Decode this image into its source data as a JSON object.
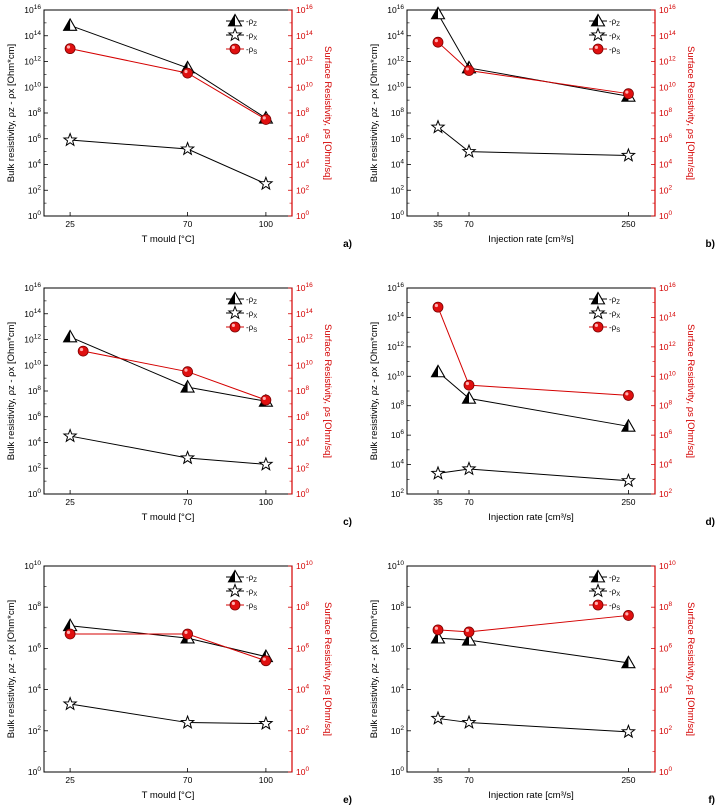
{
  "colors": {
    "bulk": "#000000",
    "surface": "#d40000",
    "marker_red": "#e01010"
  },
  "legend": {
    "rho_z": "-ρ",
    "rho_z_sub": "Z",
    "rho_x": "-ρ",
    "rho_x_sub": "X",
    "rho_s": "-ρ",
    "rho_s_sub": "S"
  },
  "chart_data": [
    {
      "panel": "a)",
      "type": "line",
      "xlabel": "T mould [°C]",
      "x": [
        25,
        70,
        100
      ],
      "xticks": [
        "25",
        "70",
        "100"
      ],
      "xscale": "mould",
      "ylabel": "Bulk resistivity, ρz - ρx [Ohm*cm]",
      "y2label": "Surface Resistivity, ρs [Ohm/sq]",
      "ylim_log": [
        0,
        16
      ],
      "yticks_exp": [
        0,
        2,
        4,
        6,
        8,
        10,
        12,
        14,
        16
      ],
      "series": [
        {
          "name": "ρz",
          "marker": "triangle",
          "values_log": [
            14.8,
            11.5,
            7.6
          ]
        },
        {
          "name": "ρx",
          "marker": "star",
          "values_log": [
            5.9,
            5.2,
            2.5
          ]
        },
        {
          "name": "ρs",
          "marker": "circle",
          "axis": "right",
          "values_log": [
            13.0,
            11.1,
            7.5
          ]
        }
      ]
    },
    {
      "panel": "b)",
      "type": "line",
      "xlabel": "Injection rate [cm³/s]",
      "x": [
        35,
        70,
        250
      ],
      "xticks": [
        "35",
        "70",
        "250"
      ],
      "xscale": "rate",
      "ylabel": "Bulk resistivity, ρz - ρx [Ohm*cm]",
      "y2label": "Surface Resistivity, ρs [Ohm/sq]",
      "ylim_log": [
        0,
        16
      ],
      "yticks_exp": [
        0,
        2,
        4,
        6,
        8,
        10,
        12,
        14,
        16
      ],
      "series": [
        {
          "name": "ρz",
          "marker": "triangle",
          "values_log": [
            15.7,
            11.5,
            9.3
          ]
        },
        {
          "name": "ρx",
          "marker": "star",
          "values_log": [
            6.9,
            5.0,
            4.7
          ]
        },
        {
          "name": "ρs",
          "marker": "circle",
          "axis": "right",
          "values_log": [
            13.5,
            11.3,
            9.5
          ]
        }
      ]
    },
    {
      "panel": "c)",
      "type": "line",
      "xlabel": "T mould [°C]",
      "x": [
        25,
        70,
        100
      ],
      "xticks": [
        "25",
        "70",
        "100"
      ],
      "xscale": "mould",
      "ylabel": "Bulk resistivity, ρz - ρx [Ohm*cm]",
      "y2label": "Surface Resistivity, ρs [Ohm/sq]",
      "ylim_log": [
        0,
        16
      ],
      "yticks_exp": [
        0,
        2,
        4,
        6,
        8,
        10,
        12,
        14,
        16
      ],
      "series": [
        {
          "name": "ρz",
          "marker": "triangle",
          "values_log": [
            12.2,
            8.3,
            7.2
          ]
        },
        {
          "name": "ρx",
          "marker": "star",
          "values_log": [
            4.5,
            2.8,
            2.3
          ]
        },
        {
          "name": "ρs",
          "marker": "circle",
          "axis": "right",
          "values_log": [
            11.1,
            9.5,
            7.3
          ],
          "x_override": [
            30,
            70,
            100
          ]
        }
      ]
    },
    {
      "panel": "d)",
      "type": "line",
      "xlabel": "Injection rate [cm³/s]",
      "x": [
        35,
        70,
        250
      ],
      "xticks": [
        "35",
        "70",
        "250"
      ],
      "xscale": "rate",
      "ylabel": "Bulk resistivity, ρz - ρx [Ohm*cm]",
      "y2label": "Surface Resistivity, ρs [Ohm/sq]",
      "ylim_log": [
        2,
        16
      ],
      "yticks_exp": [
        2,
        4,
        6,
        8,
        10,
        12,
        14,
        16
      ],
      "series": [
        {
          "name": "ρz",
          "marker": "triangle",
          "values_log": [
            10.3,
            8.5,
            6.6
          ]
        },
        {
          "name": "ρx",
          "marker": "star",
          "values_log": [
            3.4,
            3.7,
            2.9
          ]
        },
        {
          "name": "ρs",
          "marker": "circle",
          "axis": "right",
          "values_log": [
            14.7,
            9.4,
            8.7
          ]
        }
      ]
    },
    {
      "panel": "e)",
      "type": "line",
      "xlabel": "T mould [°C]",
      "x": [
        25,
        70,
        100
      ],
      "xticks": [
        "25",
        "70",
        "100"
      ],
      "xscale": "mould",
      "ylabel": "Bulk resistivity, ρz - ρx [Ohm*cm]",
      "y2label": "Surface Resistivity, ρs [Ohm/sq]",
      "ylim_log": [
        0,
        10
      ],
      "yticks_exp": [
        0,
        2,
        4,
        6,
        8,
        10
      ],
      "series": [
        {
          "name": "ρz",
          "marker": "triangle",
          "values_log": [
            7.1,
            6.5,
            5.6
          ]
        },
        {
          "name": "ρx",
          "marker": "star",
          "values_log": [
            3.3,
            2.4,
            2.35
          ]
        },
        {
          "name": "ρs",
          "marker": "circle",
          "axis": "right",
          "values_log": [
            6.7,
            6.7,
            5.4
          ]
        }
      ]
    },
    {
      "panel": "f)",
      "type": "line",
      "xlabel": "Injection rate [cm³/s]",
      "x": [
        35,
        70,
        250
      ],
      "xticks": [
        "35",
        "70",
        "250"
      ],
      "xscale": "rate",
      "ylabel": "Bulk resistivity, ρz - ρx [Ohm*cm]",
      "y2label": "Surface Resistivity, ρs [Ohm/sq]",
      "ylim_log": [
        0,
        10
      ],
      "yticks_exp": [
        0,
        2,
        4,
        6,
        8,
        10
      ],
      "series": [
        {
          "name": "ρz",
          "marker": "triangle",
          "values_log": [
            6.5,
            6.4,
            5.3
          ]
        },
        {
          "name": "ρx",
          "marker": "star",
          "values_log": [
            2.6,
            2.4,
            1.95
          ]
        },
        {
          "name": "ρs",
          "marker": "circle",
          "axis": "right",
          "values_log": [
            6.9,
            6.8,
            7.6
          ]
        }
      ]
    }
  ]
}
